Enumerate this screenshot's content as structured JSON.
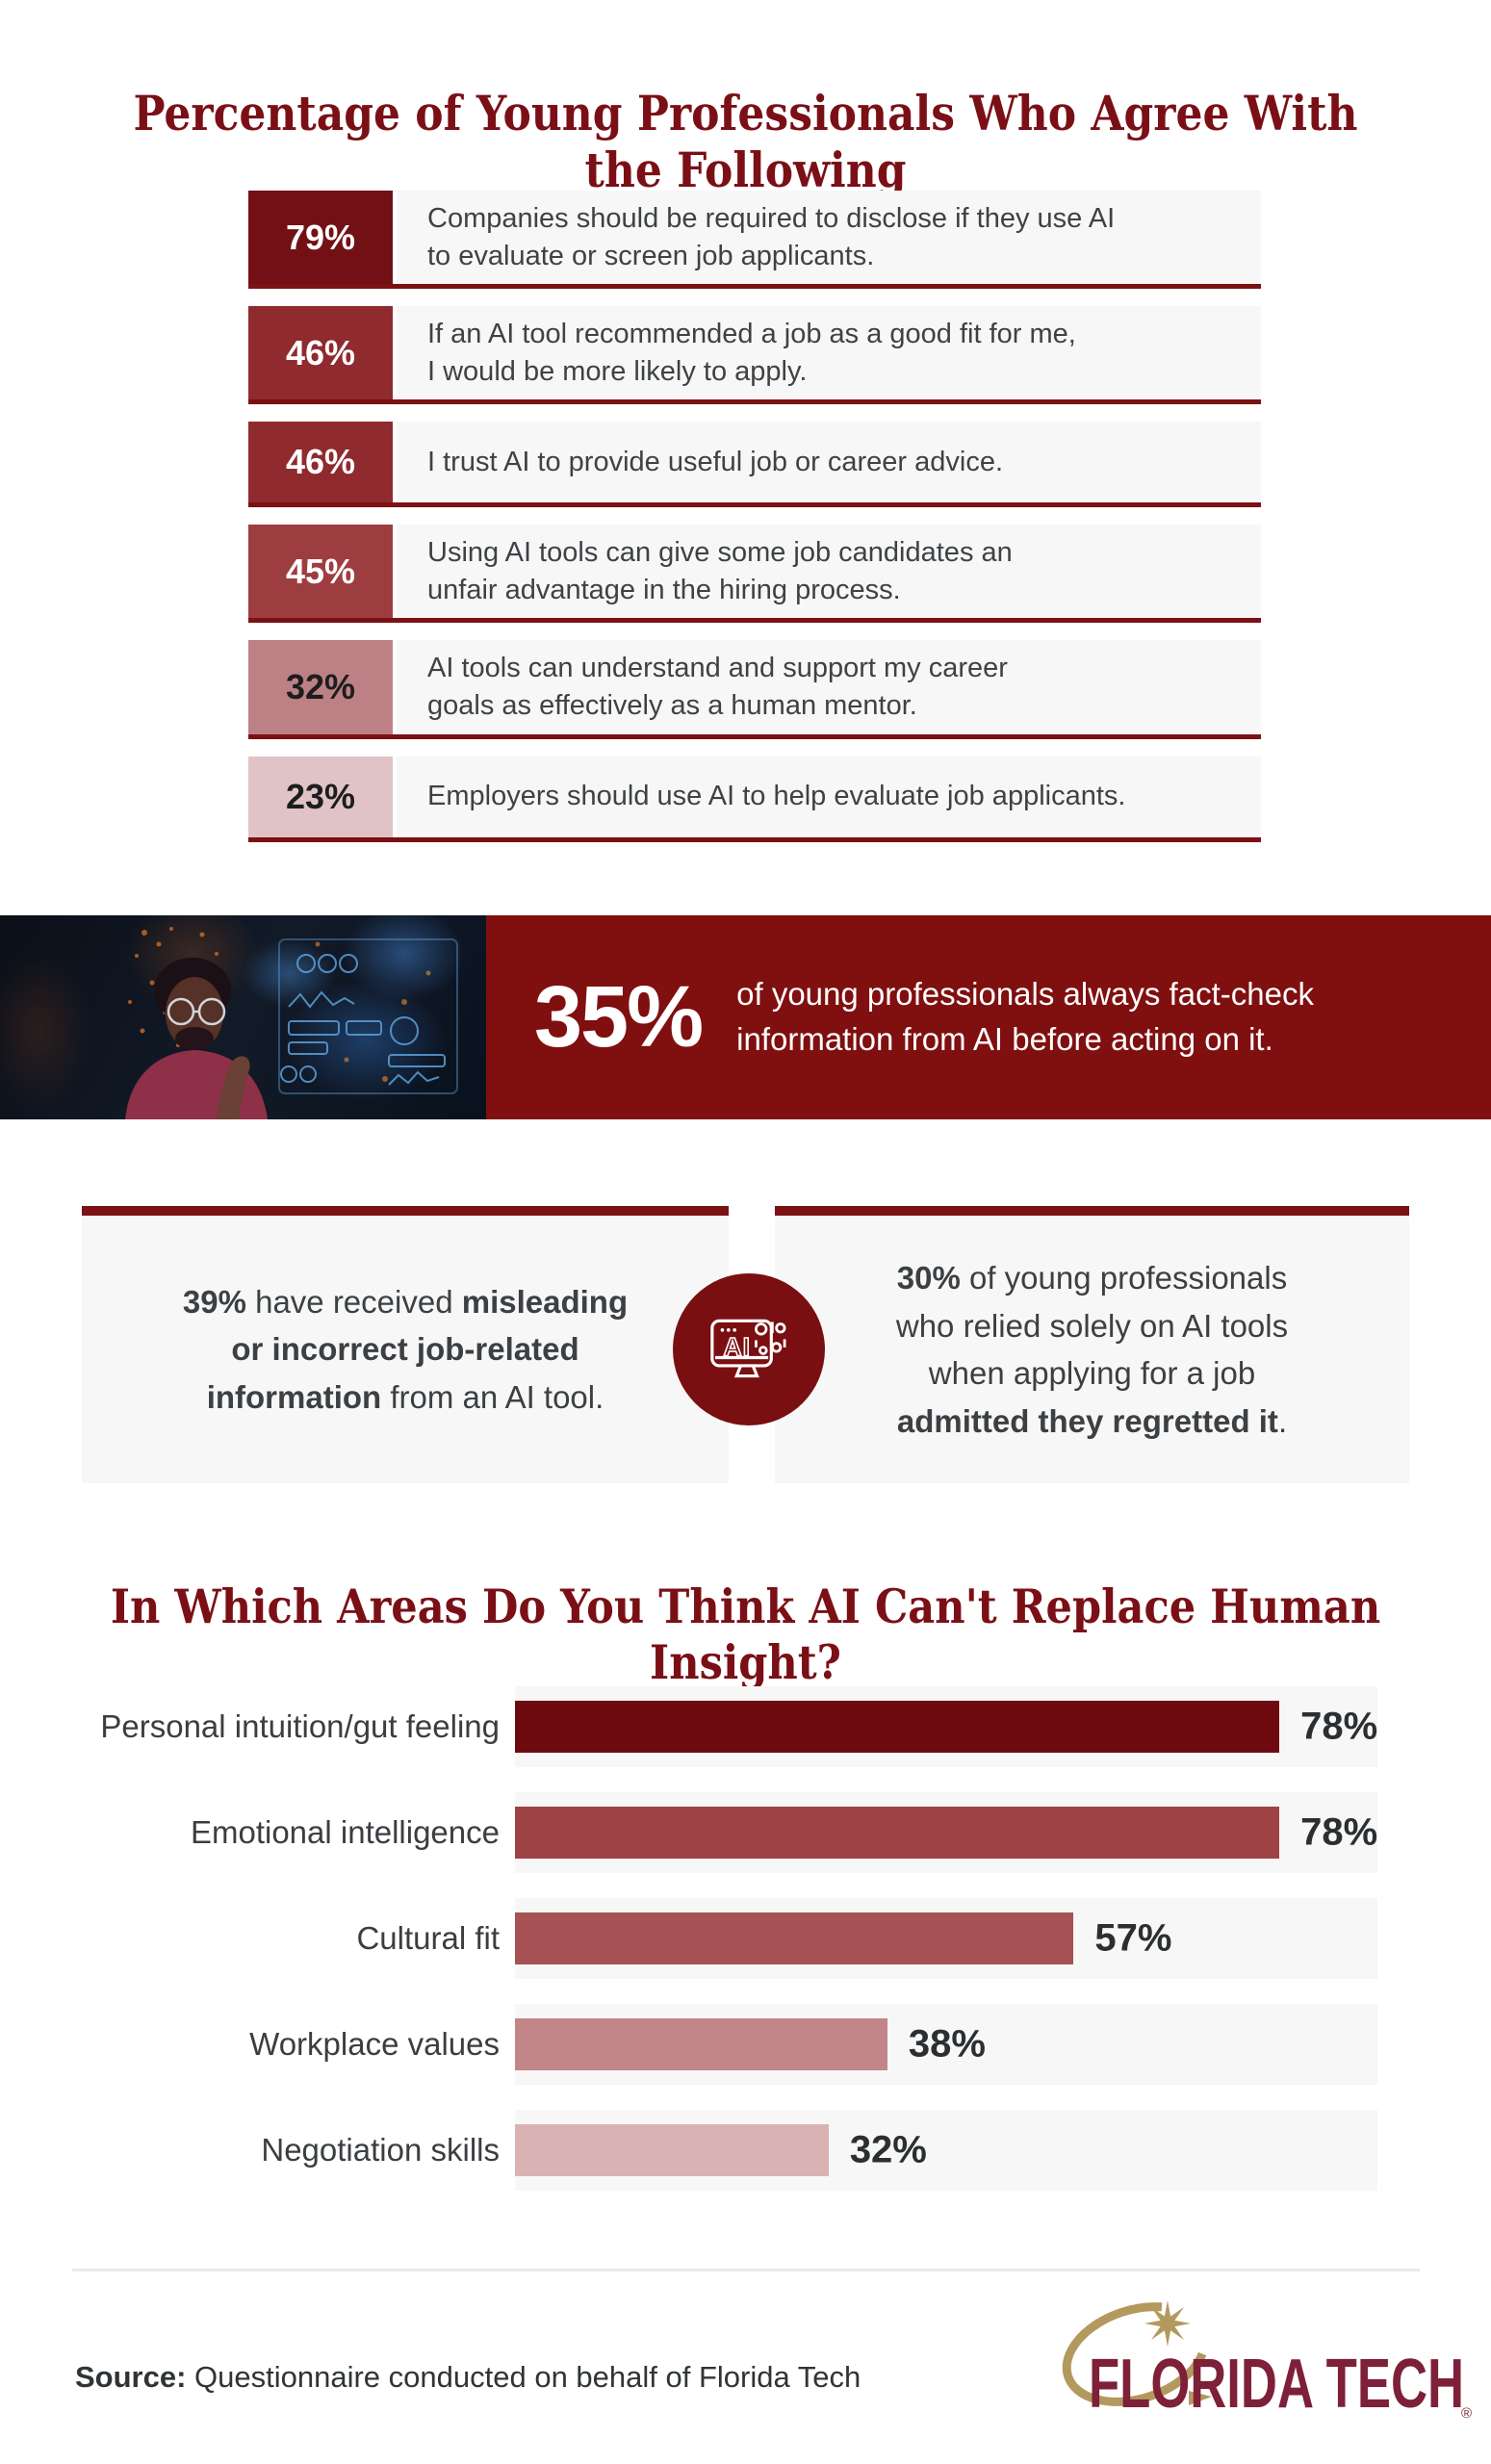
{
  "banner": {
    "stat": "35%",
    "text": "of young professionals always fact-check\ninformation from AI before acting on it.",
    "bg_color": "#800f0f"
  },
  "cards": {
    "left": {
      "segments": [
        {
          "text": "39%",
          "bold": true
        },
        {
          "text": " have received ",
          "bold": false
        },
        {
          "text": "misleading\nor incorrect job-related\ninformation",
          "bold": true
        },
        {
          "text": " from an AI tool.",
          "bold": false
        }
      ]
    },
    "right": {
      "segments": [
        {
          "text": "30%",
          "bold": true
        },
        {
          "text": " of young professionals\nwho relied solely on AI tools\nwhen applying for a job\n",
          "bold": false
        },
        {
          "text": "admitted they regretted it",
          "bold": true
        },
        {
          "text": ".",
          "bold": false
        }
      ]
    }
  },
  "footer": {
    "source_label": "Source:",
    "source_text": " Questionnaire conducted on behalf of Florida Tech",
    "logo_text": "FLORIDA TECH",
    "logo_registered_mark": "®",
    "logo_crimson": "#7d2038",
    "logo_gold": "#b3995e"
  },
  "colors": {
    "title_maroon": "#7a1016",
    "row_border": "#7c1113",
    "row_track_bg": "#f7f7f7",
    "statement_text": "#3e4245",
    "banner_red": "#800f0f",
    "badge_circle": "#7a0f12",
    "divider": "#eaeaea"
  },
  "chart_data": [
    {
      "type": "bar",
      "orientation": "horizontal",
      "title": "Percentage of Young Professionals Who Agree With the Following",
      "categories": [
        "Companies should be required to disclose if they use AI\nto evaluate or screen job applicants.",
        "If an AI tool recommended a job as a good fit for me,\nI would be more likely to apply.",
        "I trust AI to provide useful job or career advice.",
        "Using AI tools can give some job candidates an\nunfair advantage in the hiring process.",
        "AI tools can understand and support my career\ngoals as effectively as a human mentor.",
        "Employers should use AI to help evaluate job applicants."
      ],
      "values": [
        79,
        46,
        46,
        45,
        32,
        23
      ],
      "value_labels": [
        "79%",
        "46%",
        "46%",
        "45%",
        "32%",
        "23%"
      ],
      "bar_colors": [
        "#731016",
        "#8f2a2e",
        "#8f2a2e",
        "#9e3d40",
        "#bd8185",
        "#dfc3c6"
      ],
      "value_text_colors": [
        "#ffffff",
        "#ffffff",
        "#ffffff",
        "#ffffff",
        "#1d1d1f",
        "#1d1d1f"
      ],
      "grid": false,
      "legend": "none"
    },
    {
      "type": "bar",
      "orientation": "horizontal",
      "title": "In Which Areas Do You Think AI Can't Replace Human Insight?",
      "categories": [
        "Personal intuition/gut feeling",
        "Emotional intelligence",
        "Cultural fit",
        "Workplace values",
        "Negotiation skills"
      ],
      "values": [
        78,
        78,
        57,
        38,
        32
      ],
      "value_labels": [
        "78%",
        "78%",
        "57%",
        "38%",
        "32%"
      ],
      "bar_colors": [
        "#6d0a10",
        "#9f4245",
        "#a65153",
        "#c28689",
        "#d9b2b4"
      ],
      "track_color": "#f7f7f7",
      "xlim": [
        0,
        88
      ],
      "grid": false,
      "legend": "none"
    }
  ]
}
